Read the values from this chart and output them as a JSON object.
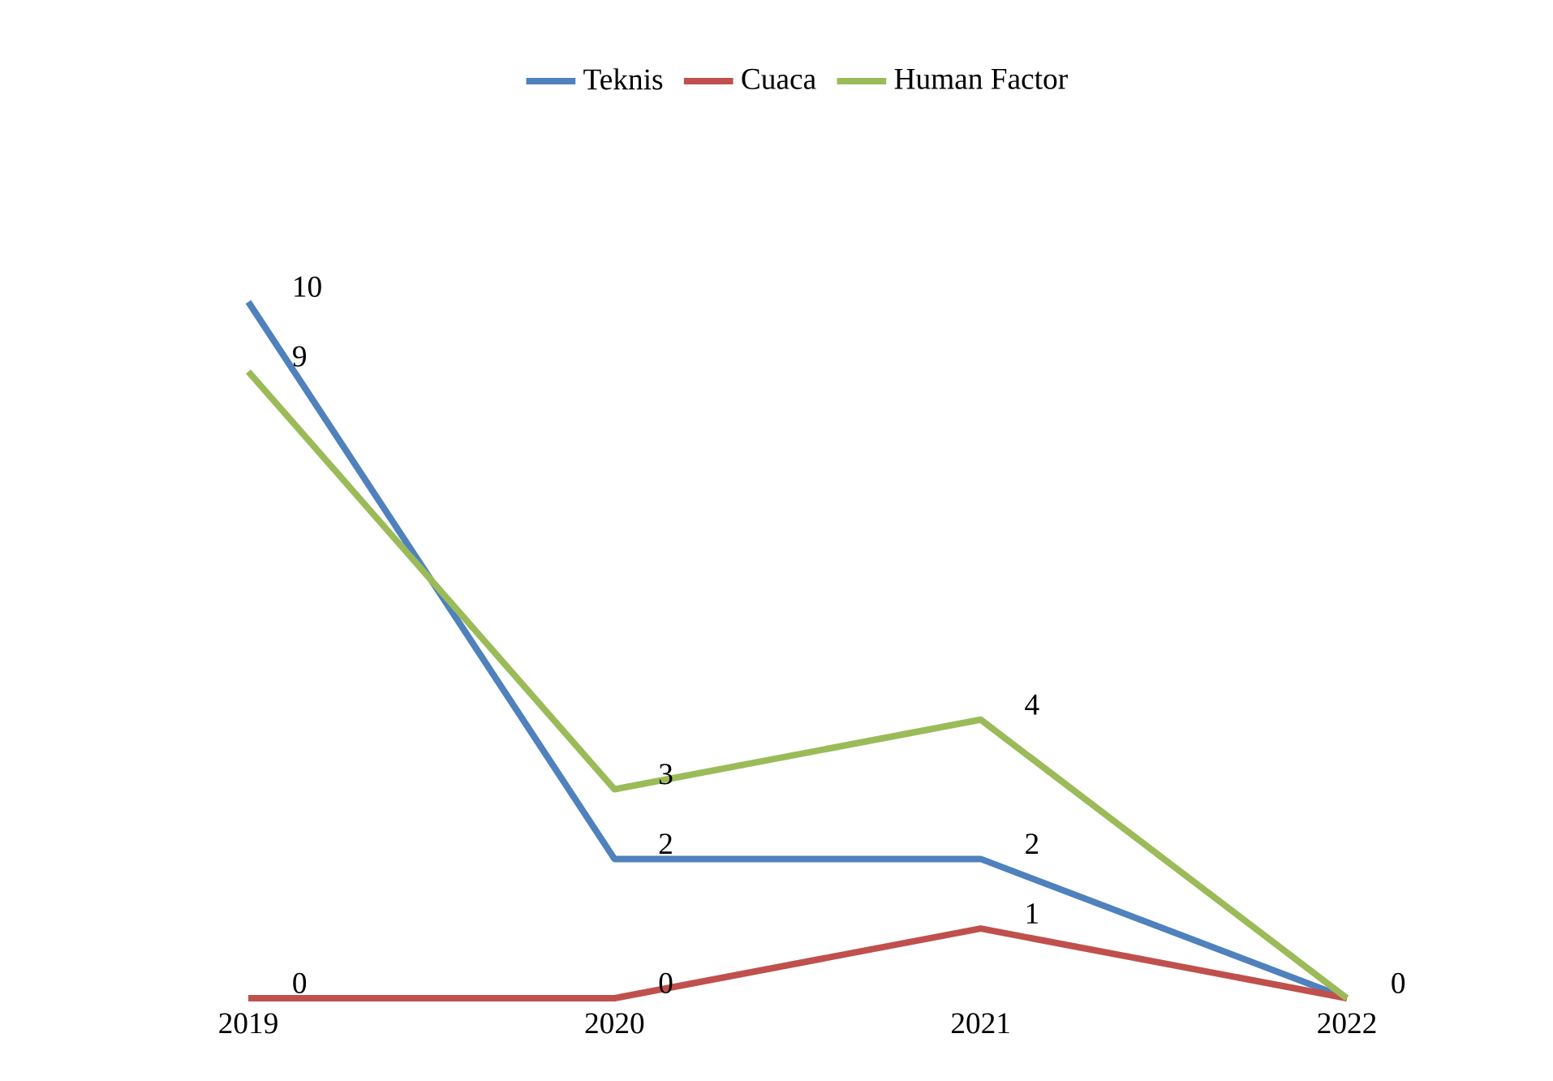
{
  "chart_data": {
    "type": "line",
    "categories": [
      "2019",
      "2020",
      "2021",
      "2022"
    ],
    "series": [
      {
        "name": "Teknis",
        "color": "#4f81bd",
        "values": [
          10,
          2,
          2,
          0
        ],
        "value_labels": [
          "10",
          "2",
          "2",
          "0"
        ]
      },
      {
        "name": "Cuaca",
        "color": "#c0504d",
        "values": [
          0,
          0,
          1,
          0
        ],
        "value_labels": [
          "0",
          "0",
          "1",
          null
        ]
      },
      {
        "name": "Human Factor",
        "color": "#9bbb59",
        "values": [
          9,
          3,
          4,
          0
        ],
        "value_labels": [
          "9",
          "3",
          "4",
          null
        ]
      }
    ],
    "legend": "top"
  }
}
